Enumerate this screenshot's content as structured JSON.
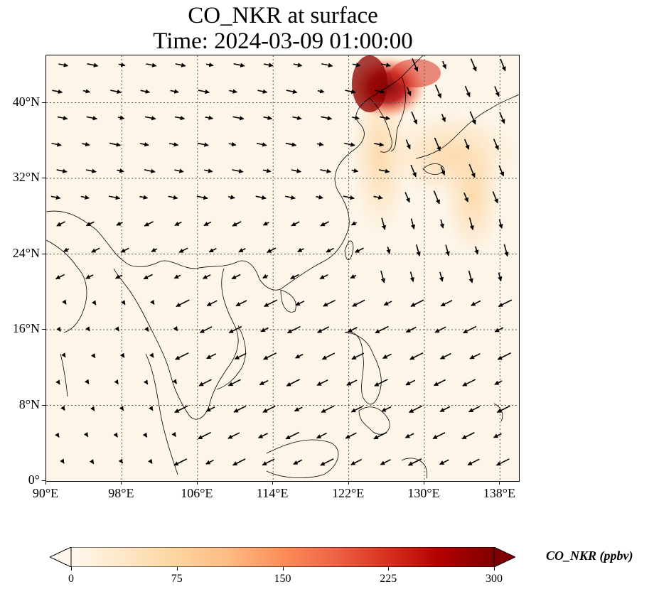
{
  "title": {
    "line1": "CO_NKR at surface",
    "line2": "Time: 2024-03-09 01:00:00"
  },
  "map": {
    "lon_range": [
      90,
      140
    ],
    "lat_range": [
      0,
      45
    ],
    "lon_ticks": [
      "90°E",
      "98°E",
      "106°E",
      "114°E",
      "122°E",
      "130°E",
      "138°E"
    ],
    "lat_ticks": [
      "0°",
      "8°N",
      "16°N",
      "24°N",
      "32°N",
      "40°N"
    ],
    "gridlines": "dotted",
    "background_color": "#fdf5e8",
    "coastline_color": "#000000",
    "wind_arrows": "black quiver vectors",
    "plume": {
      "description": "high CO_NKR concentration near North Korea / Bohai, spreading south-east over Korea and Japan"
    }
  },
  "colorbar": {
    "label": "CO_NKR (ppbv)",
    "ticks": [
      "0",
      "75",
      "150",
      "225",
      "300"
    ],
    "range": [
      0,
      300
    ],
    "colormap": "OrRd",
    "colors": [
      "#fff7ec",
      "#fee8c8",
      "#fdd49e",
      "#fdbb84",
      "#fc8d59",
      "#ef6548",
      "#d7301f",
      "#b30000",
      "#7f0000"
    ],
    "extend": "both"
  }
}
